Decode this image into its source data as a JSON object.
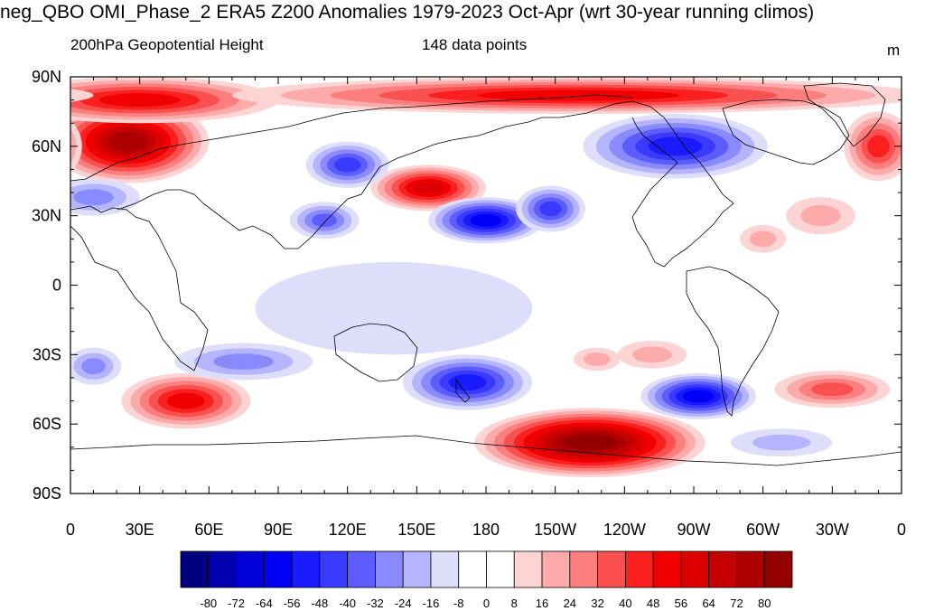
{
  "title": "neg_QBO OMI_Phase_2 ERA5 Z200 Anomalies 1979-2023 Oct-Apr (wrt 30-year running climos)",
  "subtitle_left": "200hPa Geopotential Height",
  "subtitle_center": "148 data points",
  "units": "m",
  "lat_labels": [
    "90N",
    "60N",
    "30N",
    "0",
    "30S",
    "60S",
    "90S"
  ],
  "lon_labels": [
    "0",
    "30E",
    "60E",
    "90E",
    "120E",
    "150E",
    "180",
    "150W",
    "120W",
    "90W",
    "60W",
    "30W",
    "0"
  ],
  "colorbar": {
    "colors": [
      "#000080",
      "#0000b0",
      "#0000d8",
      "#0000f8",
      "#1a1aff",
      "#3a3aff",
      "#5c5cff",
      "#8a8aff",
      "#b4b4ff",
      "#dedefa",
      "#ffffff",
      "#ffffff",
      "#fcd4d4",
      "#fcaaaa",
      "#fc7e7e",
      "#fb5050",
      "#fb2020",
      "#f00000",
      "#dc0000",
      "#c40000",
      "#ac0000",
      "#940000"
    ],
    "labels": [
      "-80",
      "-72",
      "-64",
      "-56",
      "-48",
      "-40",
      "-32",
      "-24",
      "-16",
      "-8",
      "0",
      "8",
      "16",
      "24",
      "32",
      "40",
      "48",
      "56",
      "64",
      "72",
      "80"
    ]
  },
  "anomalies": [
    {
      "lon": 25,
      "lat": 62,
      "rx": 35,
      "ry": 18,
      "value": 72
    },
    {
      "lon": 30,
      "lat": 80,
      "rx": 60,
      "ry": 10,
      "value": 48
    },
    {
      "lon": 220,
      "lat": 82,
      "rx": 150,
      "ry": 8,
      "value": 48
    },
    {
      "lon": 350,
      "lat": 60,
      "rx": 15,
      "ry": 15,
      "value": 40
    },
    {
      "lon": 10,
      "lat": 38,
      "rx": 20,
      "ry": 8,
      "value": -24
    },
    {
      "lon": 155,
      "lat": 42,
      "rx": 25,
      "ry": 10,
      "value": 56
    },
    {
      "lon": 120,
      "lat": 52,
      "rx": 18,
      "ry": 10,
      "value": -40
    },
    {
      "lon": 180,
      "lat": 28,
      "rx": 25,
      "ry": 10,
      "value": -56
    },
    {
      "lon": 110,
      "lat": 28,
      "rx": 15,
      "ry": 8,
      "value": -32
    },
    {
      "lon": 208,
      "lat": 33,
      "rx": 15,
      "ry": 10,
      "value": -40
    },
    {
      "lon": 262,
      "lat": 60,
      "rx": 40,
      "ry": 14,
      "value": -48
    },
    {
      "lon": 300,
      "lat": 20,
      "rx": 10,
      "ry": 6,
      "value": 16
    },
    {
      "lon": 325,
      "lat": 30,
      "rx": 15,
      "ry": 8,
      "value": 16
    },
    {
      "lon": 50,
      "lat": -50,
      "rx": 28,
      "ry": 12,
      "value": 48
    },
    {
      "lon": 75,
      "lat": -33,
      "rx": 30,
      "ry": 8,
      "value": -24
    },
    {
      "lon": 10,
      "lat": -35,
      "rx": 12,
      "ry": 8,
      "value": -24
    },
    {
      "lon": 172,
      "lat": -42,
      "rx": 28,
      "ry": 12,
      "value": -48
    },
    {
      "lon": 225,
      "lat": -68,
      "rx": 50,
      "ry": 15,
      "value": 80
    },
    {
      "lon": 272,
      "lat": -48,
      "rx": 25,
      "ry": 10,
      "value": -56
    },
    {
      "lon": 330,
      "lat": -45,
      "rx": 25,
      "ry": 8,
      "value": 32
    },
    {
      "lon": 252,
      "lat": -30,
      "rx": 15,
      "ry": 6,
      "value": 16
    },
    {
      "lon": 228,
      "lat": -32,
      "rx": 10,
      "ry": 5,
      "value": 16
    },
    {
      "lon": 308,
      "lat": -68,
      "rx": 22,
      "ry": 6,
      "value": -16
    },
    {
      "lon": 140,
      "lat": -10,
      "rx": 60,
      "ry": 20,
      "value": -8
    }
  ]
}
